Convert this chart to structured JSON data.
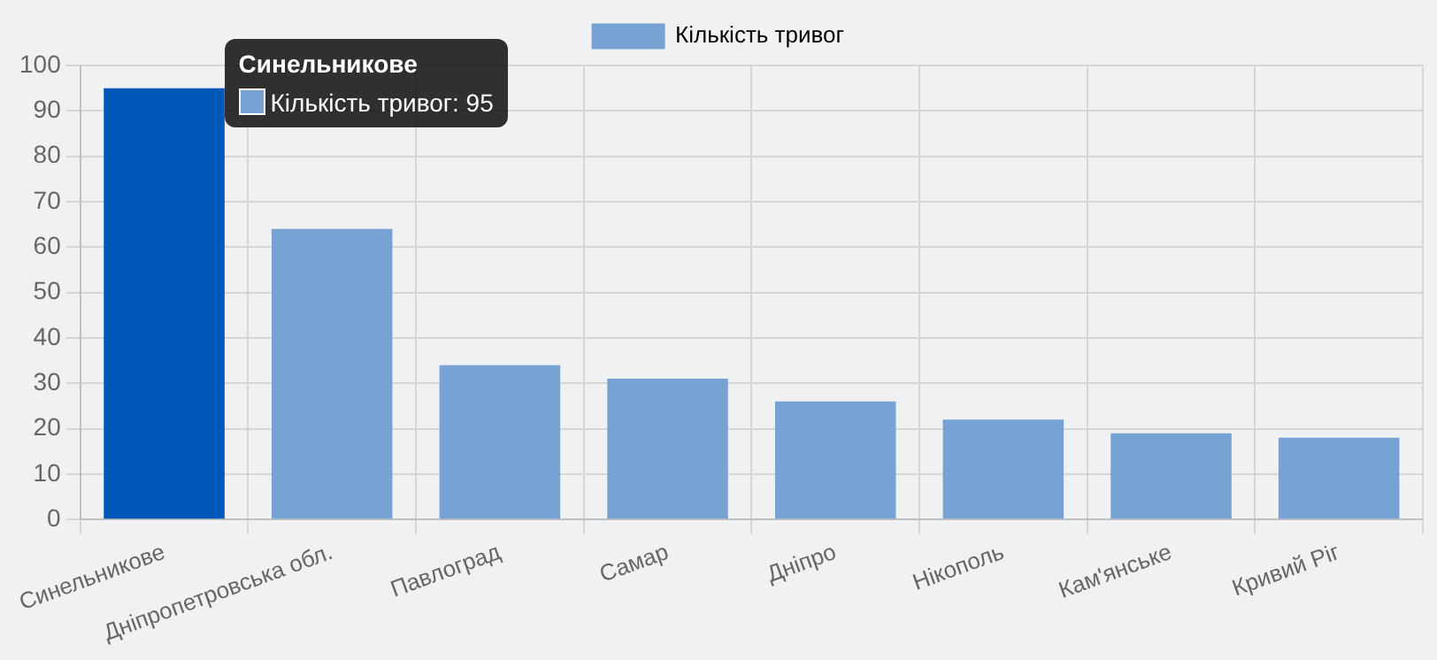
{
  "chart_data": {
    "type": "bar",
    "categories": [
      "Синельникове",
      "Дніпропетровська обл.",
      "Павлоград",
      "Самар",
      "Дніпро",
      "Нікополь",
      "Кам'янське",
      "Кривий Ріг"
    ],
    "series": [
      {
        "name": "Кількість тривог",
        "color": "#77a3d4",
        "colors": [
          "#0057b8",
          "#77a3d4",
          "#77a3d4",
          "#77a3d4",
          "#77a3d4",
          "#77a3d4",
          "#77a3d4",
          "#77a3d4"
        ],
        "values": [
          95,
          64,
          34,
          31,
          26,
          22,
          19,
          18
        ]
      }
    ],
    "ylim": [
      0,
      100
    ],
    "yticks": [
      0,
      10,
      20,
      30,
      40,
      50,
      60,
      70,
      80,
      90,
      100
    ],
    "grid": true,
    "legend": "top",
    "annotations": [
      "Синельникове",
      "Кількість тривог: 95"
    ]
  }
}
